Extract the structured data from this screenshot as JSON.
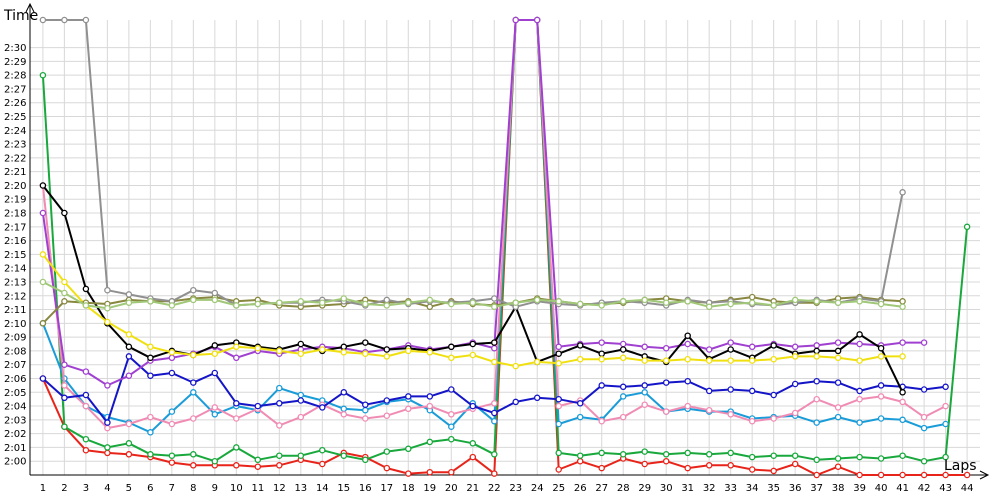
{
  "chart_data": {
    "type": "line",
    "ylabel": "Time",
    "xlabel": "Laps",
    "x_ticks": [
      "1",
      "2",
      "3",
      "4",
      "5",
      "6",
      "7",
      "8",
      "9",
      "10",
      "11",
      "12",
      "13",
      "14",
      "15",
      "16",
      "17",
      "18",
      "19",
      "20",
      "21",
      "22",
      "23",
      "24",
      "25",
      "26",
      "27",
      "28",
      "29",
      "30",
      "31",
      "32",
      "33",
      "34",
      "35",
      "36",
      "37",
      "38",
      "39",
      "40",
      "41",
      "42",
      "43",
      "44"
    ],
    "y_ticks": [
      "2:00",
      "2:01",
      "2:02",
      "2:03",
      "2:04",
      "2:05",
      "2:06",
      "2:07",
      "2:08",
      "2:09",
      "2:10",
      "2:11",
      "2:12",
      "2:13",
      "2:14",
      "2:15",
      "2:16",
      "2:17",
      "2:18",
      "2:19",
      "2:20",
      "2:21",
      "2:22",
      "2:23",
      "2:24",
      "2:25",
      "2:26",
      "2:27",
      "2:28",
      "2:29",
      "2:30"
    ],
    "ylim_seconds": [
      119,
      152
    ],
    "xlim": [
      0.4,
      44.6
    ],
    "grid": true,
    "series": [
      {
        "color": "#e8241a",
        "values": [
          126,
          122.5,
          120.8,
          120.6,
          120.5,
          120.3,
          119.9,
          119.7,
          119.7,
          119.7,
          119.6,
          119.7,
          120.1,
          119.8,
          120.6,
          120.3,
          119.5,
          119.1,
          119.2,
          119.2,
          120.3,
          119.1,
          152,
          152,
          119.4,
          120,
          119.5,
          120.2,
          119.8,
          120,
          119.5,
          119.7,
          119.7,
          119.4,
          119.3,
          119.8,
          118.9,
          119.6,
          119,
          118.9,
          118.8,
          118.7,
          118.7,
          118.6
        ]
      },
      {
        "color": "#18a83c",
        "values": [
          148,
          122.5,
          121.6,
          121,
          121.3,
          120.5,
          120.4,
          120.5,
          120,
          121,
          120.1,
          120.4,
          120.4,
          120.8,
          120.4,
          120.1,
          120.7,
          120.9,
          121.4,
          121.6,
          121.3,
          120.5,
          152,
          152,
          120.6,
          120.4,
          120.6,
          120.5,
          120.7,
          120.5,
          120.6,
          120.5,
          120.6,
          120.3,
          120.4,
          120.4,
          120.1,
          120.2,
          120.3,
          120.2,
          120.4,
          120,
          120.3,
          137
        ]
      },
      {
        "color": "#1a9cd8",
        "values": [
          130,
          126,
          124,
          123.2,
          122.8,
          122.1,
          123.6,
          125,
          123.4,
          124,
          123.7,
          125.3,
          124.8,
          124.4,
          123.8,
          123.7,
          124.3,
          124.5,
          123.7,
          122.5,
          124.2,
          122.9,
          152,
          152,
          122.7,
          123.2,
          123,
          124.7,
          125,
          123.6,
          123.8,
          123.6,
          123.6,
          123.1,
          123.2,
          123.3,
          122.8,
          123.2,
          122.8,
          123.1,
          123,
          122.4,
          122.7,
          0
        ]
      },
      {
        "color": "#f08cb4",
        "values": [
          140,
          125.5,
          124,
          122.4,
          122.7,
          123.2,
          122.7,
          123.1,
          123.9,
          123.1,
          123.8,
          122.6,
          123.2,
          124.1,
          123.4,
          123.1,
          123.3,
          123.8,
          124,
          123.4,
          123.8,
          124.2,
          152,
          152,
          124,
          124.4,
          122.9,
          123.2,
          124.1,
          123.6,
          124,
          123.7,
          123.4,
          122.9,
          123.1,
          123.5,
          124.5,
          123.9,
          124.5,
          124.7,
          124.3,
          123.2,
          124,
          0
        ]
      },
      {
        "color": "#1515c8",
        "values": [
          126,
          124.6,
          124.8,
          122.8,
          127.6,
          126.2,
          126.4,
          125.7,
          126.4,
          124.2,
          124,
          124.2,
          124.4,
          123.9,
          125,
          124.1,
          124.4,
          124.7,
          124.7,
          125.2,
          124,
          123.5,
          124.3,
          124.6,
          124.5,
          124.2,
          125.5,
          125.4,
          125.5,
          125.7,
          125.8,
          125.1,
          125.2,
          125.1,
          124.8,
          125.6,
          125.8,
          125.7,
          125.1,
          125.5,
          125.4,
          125.2,
          125.4,
          0
        ]
      },
      {
        "color": "#a040d0",
        "values": [
          138,
          127,
          126.5,
          125.5,
          126.2,
          127.3,
          127.5,
          127.8,
          128.3,
          127.5,
          128,
          127.8,
          128.1,
          128.3,
          128.2,
          127.9,
          128.1,
          128.4,
          128.1,
          128.3,
          128.6,
          128.2,
          152,
          152,
          128.3,
          128.5,
          128.6,
          128.5,
          128.3,
          128.2,
          128.5,
          128.1,
          128.6,
          128.3,
          128.5,
          128.3,
          128.4,
          128.6,
          128.5,
          128.4,
          128.6,
          128.6,
          0,
          0
        ]
      },
      {
        "color": "#000000",
        "values": [
          140,
          138,
          132.5,
          130,
          128.3,
          127.5,
          128,
          127.7,
          128.4,
          128.6,
          128.3,
          128.1,
          128.5,
          128,
          128.3,
          128.6,
          128.1,
          128.2,
          128,
          128.3,
          128.5,
          128.6,
          131.2,
          127.2,
          127.8,
          128.4,
          127.8,
          128.1,
          127.6,
          127.2,
          129.1,
          127.4,
          128.1,
          127.5,
          128.4,
          127.8,
          128,
          128,
          129.2,
          128.2,
          125,
          0,
          0,
          0
        ]
      },
      {
        "color": "#f0e010",
        "values": [
          135,
          133,
          131.3,
          130.1,
          129.2,
          128.3,
          127.9,
          127.7,
          127.8,
          128.3,
          128.2,
          128,
          127.8,
          128.1,
          127.9,
          127.8,
          127.6,
          128,
          127.9,
          127.5,
          127.7,
          127.2,
          126.9,
          127.2,
          127.1,
          127.4,
          127.4,
          127.5,
          127.3,
          127.3,
          127.4,
          127.3,
          127.3,
          127.3,
          127.4,
          127.6,
          127.6,
          127.5,
          127.3,
          127.6,
          127.6,
          0,
          0,
          0
        ]
      },
      {
        "color": "#888840",
        "values": [
          130,
          131.6,
          131.5,
          131.4,
          131.7,
          131.6,
          131.6,
          131.8,
          131.9,
          131.6,
          131.7,
          131.3,
          131.2,
          131.3,
          131.4,
          131.7,
          131.5,
          131.6,
          131.2,
          131.6,
          131.4,
          131.3,
          131.5,
          131.8,
          131.6,
          131.4,
          131.4,
          131.5,
          131.7,
          131.8,
          131.6,
          131.5,
          131.7,
          131.9,
          131.6,
          131.5,
          131.5,
          131.8,
          131.9,
          131.7,
          131.6,
          0,
          0,
          0
        ]
      },
      {
        "color": "#909090",
        "values": [
          152,
          152,
          152,
          132.4,
          132.1,
          131.8,
          131.6,
          132.4,
          132.2,
          131.3,
          131.4,
          131.5,
          131.5,
          131.7,
          131.6,
          131.3,
          131.7,
          131.4,
          131.6,
          131.5,
          131.6,
          131.8,
          131.2,
          131.6,
          131.4,
          131.3,
          131.5,
          131.6,
          131.5,
          131.3,
          131.7,
          131.5,
          131.6,
          131.4,
          131.3,
          131.5,
          131.7,
          131.5,
          131.8,
          131.6,
          139.5,
          0,
          0,
          0
        ]
      },
      {
        "color": "#a0c878",
        "values": [
          133,
          132.2,
          131.3,
          131.1,
          131.5,
          131.6,
          131.3,
          131.7,
          131.7,
          131.3,
          131.4,
          131.5,
          131.6,
          131.5,
          131.8,
          131.4,
          131.3,
          131.5,
          131.7,
          131.4,
          131.5,
          131.2,
          131.5,
          131.7,
          131.6,
          131.4,
          131.3,
          131.6,
          131.7,
          131.5,
          131.6,
          131.2,
          131.4,
          131.5,
          131.3,
          131.7,
          131.6,
          131.5,
          131.6,
          131.4,
          131.2,
          0,
          0,
          0
        ]
      }
    ]
  }
}
